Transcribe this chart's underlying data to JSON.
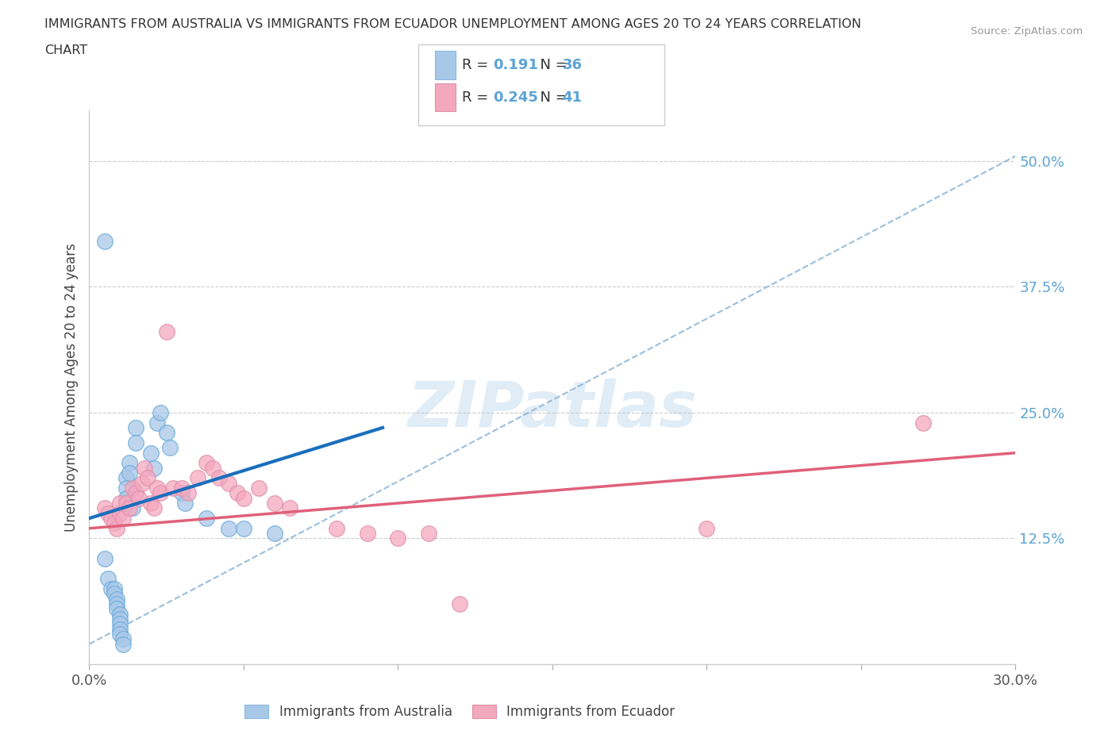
{
  "title_line1": "IMMIGRANTS FROM AUSTRALIA VS IMMIGRANTS FROM ECUADOR UNEMPLOYMENT AMONG AGES 20 TO 24 YEARS CORRELATION",
  "title_line2": "CHART",
  "source": "Source: ZipAtlas.com",
  "ylabel": "Unemployment Among Ages 20 to 24 years",
  "xmin": 0.0,
  "xmax": 0.3,
  "ymin": 0.0,
  "ymax": 0.55,
  "color_australia": "#a8c8e8",
  "color_ecuador": "#f4a8c0",
  "line_color_australia": "#1a6fbd",
  "line_color_ecuador": "#e0607a",
  "line_color_dashed": "#90b8d8",
  "legend_R_australia": "0.191",
  "legend_N_australia": "36",
  "legend_R_ecuador": "0.245",
  "legend_N_ecuador": "41",
  "aus_x": [
    0.005,
    0.005,
    0.006,
    0.007,
    0.008,
    0.008,
    0.009,
    0.009,
    0.009,
    0.01,
    0.01,
    0.01,
    0.01,
    0.01,
    0.011,
    0.011,
    0.012,
    0.012,
    0.012,
    0.013,
    0.013,
    0.014,
    0.015,
    0.015,
    0.02,
    0.021,
    0.022,
    0.023,
    0.025,
    0.026,
    0.03,
    0.031,
    0.038,
    0.045,
    0.05,
    0.06
  ],
  "aus_y": [
    0.42,
    0.105,
    0.085,
    0.075,
    0.075,
    0.07,
    0.065,
    0.06,
    0.055,
    0.05,
    0.045,
    0.04,
    0.035,
    0.03,
    0.025,
    0.02,
    0.185,
    0.175,
    0.165,
    0.2,
    0.19,
    0.155,
    0.235,
    0.22,
    0.21,
    0.195,
    0.24,
    0.25,
    0.23,
    0.215,
    0.17,
    0.16,
    0.145,
    0.135,
    0.135,
    0.13
  ],
  "ecu_x": [
    0.005,
    0.006,
    0.007,
    0.008,
    0.009,
    0.01,
    0.01,
    0.011,
    0.012,
    0.013,
    0.014,
    0.015,
    0.016,
    0.017,
    0.018,
    0.019,
    0.02,
    0.021,
    0.022,
    0.023,
    0.025,
    0.027,
    0.03,
    0.032,
    0.035,
    0.038,
    0.04,
    0.042,
    0.045,
    0.048,
    0.05,
    0.055,
    0.06,
    0.065,
    0.08,
    0.09,
    0.1,
    0.11,
    0.12,
    0.2,
    0.27
  ],
  "ecu_y": [
    0.155,
    0.15,
    0.145,
    0.14,
    0.135,
    0.16,
    0.15,
    0.145,
    0.16,
    0.155,
    0.175,
    0.17,
    0.165,
    0.18,
    0.195,
    0.185,
    0.16,
    0.155,
    0.175,
    0.17,
    0.33,
    0.175,
    0.175,
    0.17,
    0.185,
    0.2,
    0.195,
    0.185,
    0.18,
    0.17,
    0.165,
    0.175,
    0.16,
    0.155,
    0.135,
    0.13,
    0.125,
    0.13,
    0.06,
    0.135,
    0.24
  ],
  "aus_trend_x": [
    0.0,
    0.095
  ],
  "aus_trend_y": [
    0.145,
    0.235
  ],
  "ecu_trend_x": [
    0.0,
    0.3
  ],
  "ecu_trend_y": [
    0.135,
    0.21
  ],
  "dash_trend_x": [
    0.0,
    0.3
  ],
  "dash_trend_y": [
    0.02,
    0.505
  ]
}
